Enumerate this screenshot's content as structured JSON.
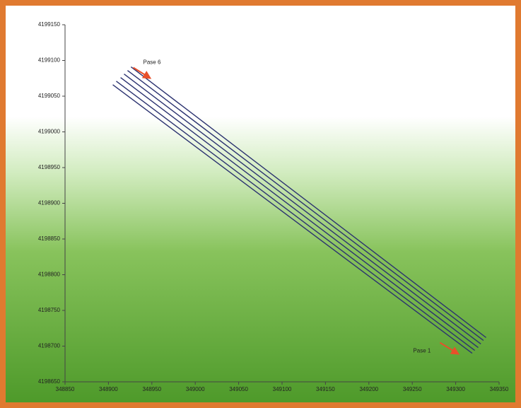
{
  "chart_data": {
    "type": "line",
    "xlim": [
      348850,
      349350
    ],
    "xticks": [
      348850,
      348900,
      348950,
      349000,
      349050,
      349100,
      349150,
      349200,
      349250,
      349300,
      349350
    ],
    "ylim": [
      4198650,
      4199150
    ],
    "yticks": [
      4198650,
      4198700,
      4198750,
      4198800,
      4198850,
      4198900,
      4198950,
      4199000,
      4199050,
      4199100,
      4199150
    ],
    "series": [
      {
        "color": "#2b3270",
        "x": [
          348905,
          349319
        ],
        "values": [
          4199066,
          4198690
        ]
      },
      {
        "color": "#2b3270",
        "x": [
          348909,
          349322
        ],
        "values": [
          4199071,
          4198694
        ]
      },
      {
        "color": "#2b3270",
        "x": [
          348914,
          349326
        ],
        "values": [
          4199076,
          4198698
        ]
      },
      {
        "color": "#2b3270",
        "x": [
          348918,
          349329
        ],
        "values": [
          4199081,
          4198703
        ]
      },
      {
        "color": "#2b3270",
        "x": [
          348922,
          349332
        ],
        "values": [
          4199086,
          4198708
        ]
      },
      {
        "color": "#2b3270",
        "x": [
          348926,
          349335
        ],
        "values": [
          4199091,
          4198712
        ]
      }
    ],
    "annotations": [
      {
        "text": "Pase 6",
        "x": 348940,
        "y": 4199097,
        "color": "#e8502a"
      },
      {
        "text": "Pase 1",
        "x": 349251,
        "y": 4198693,
        "color": "#e8502a"
      }
    ]
  }
}
